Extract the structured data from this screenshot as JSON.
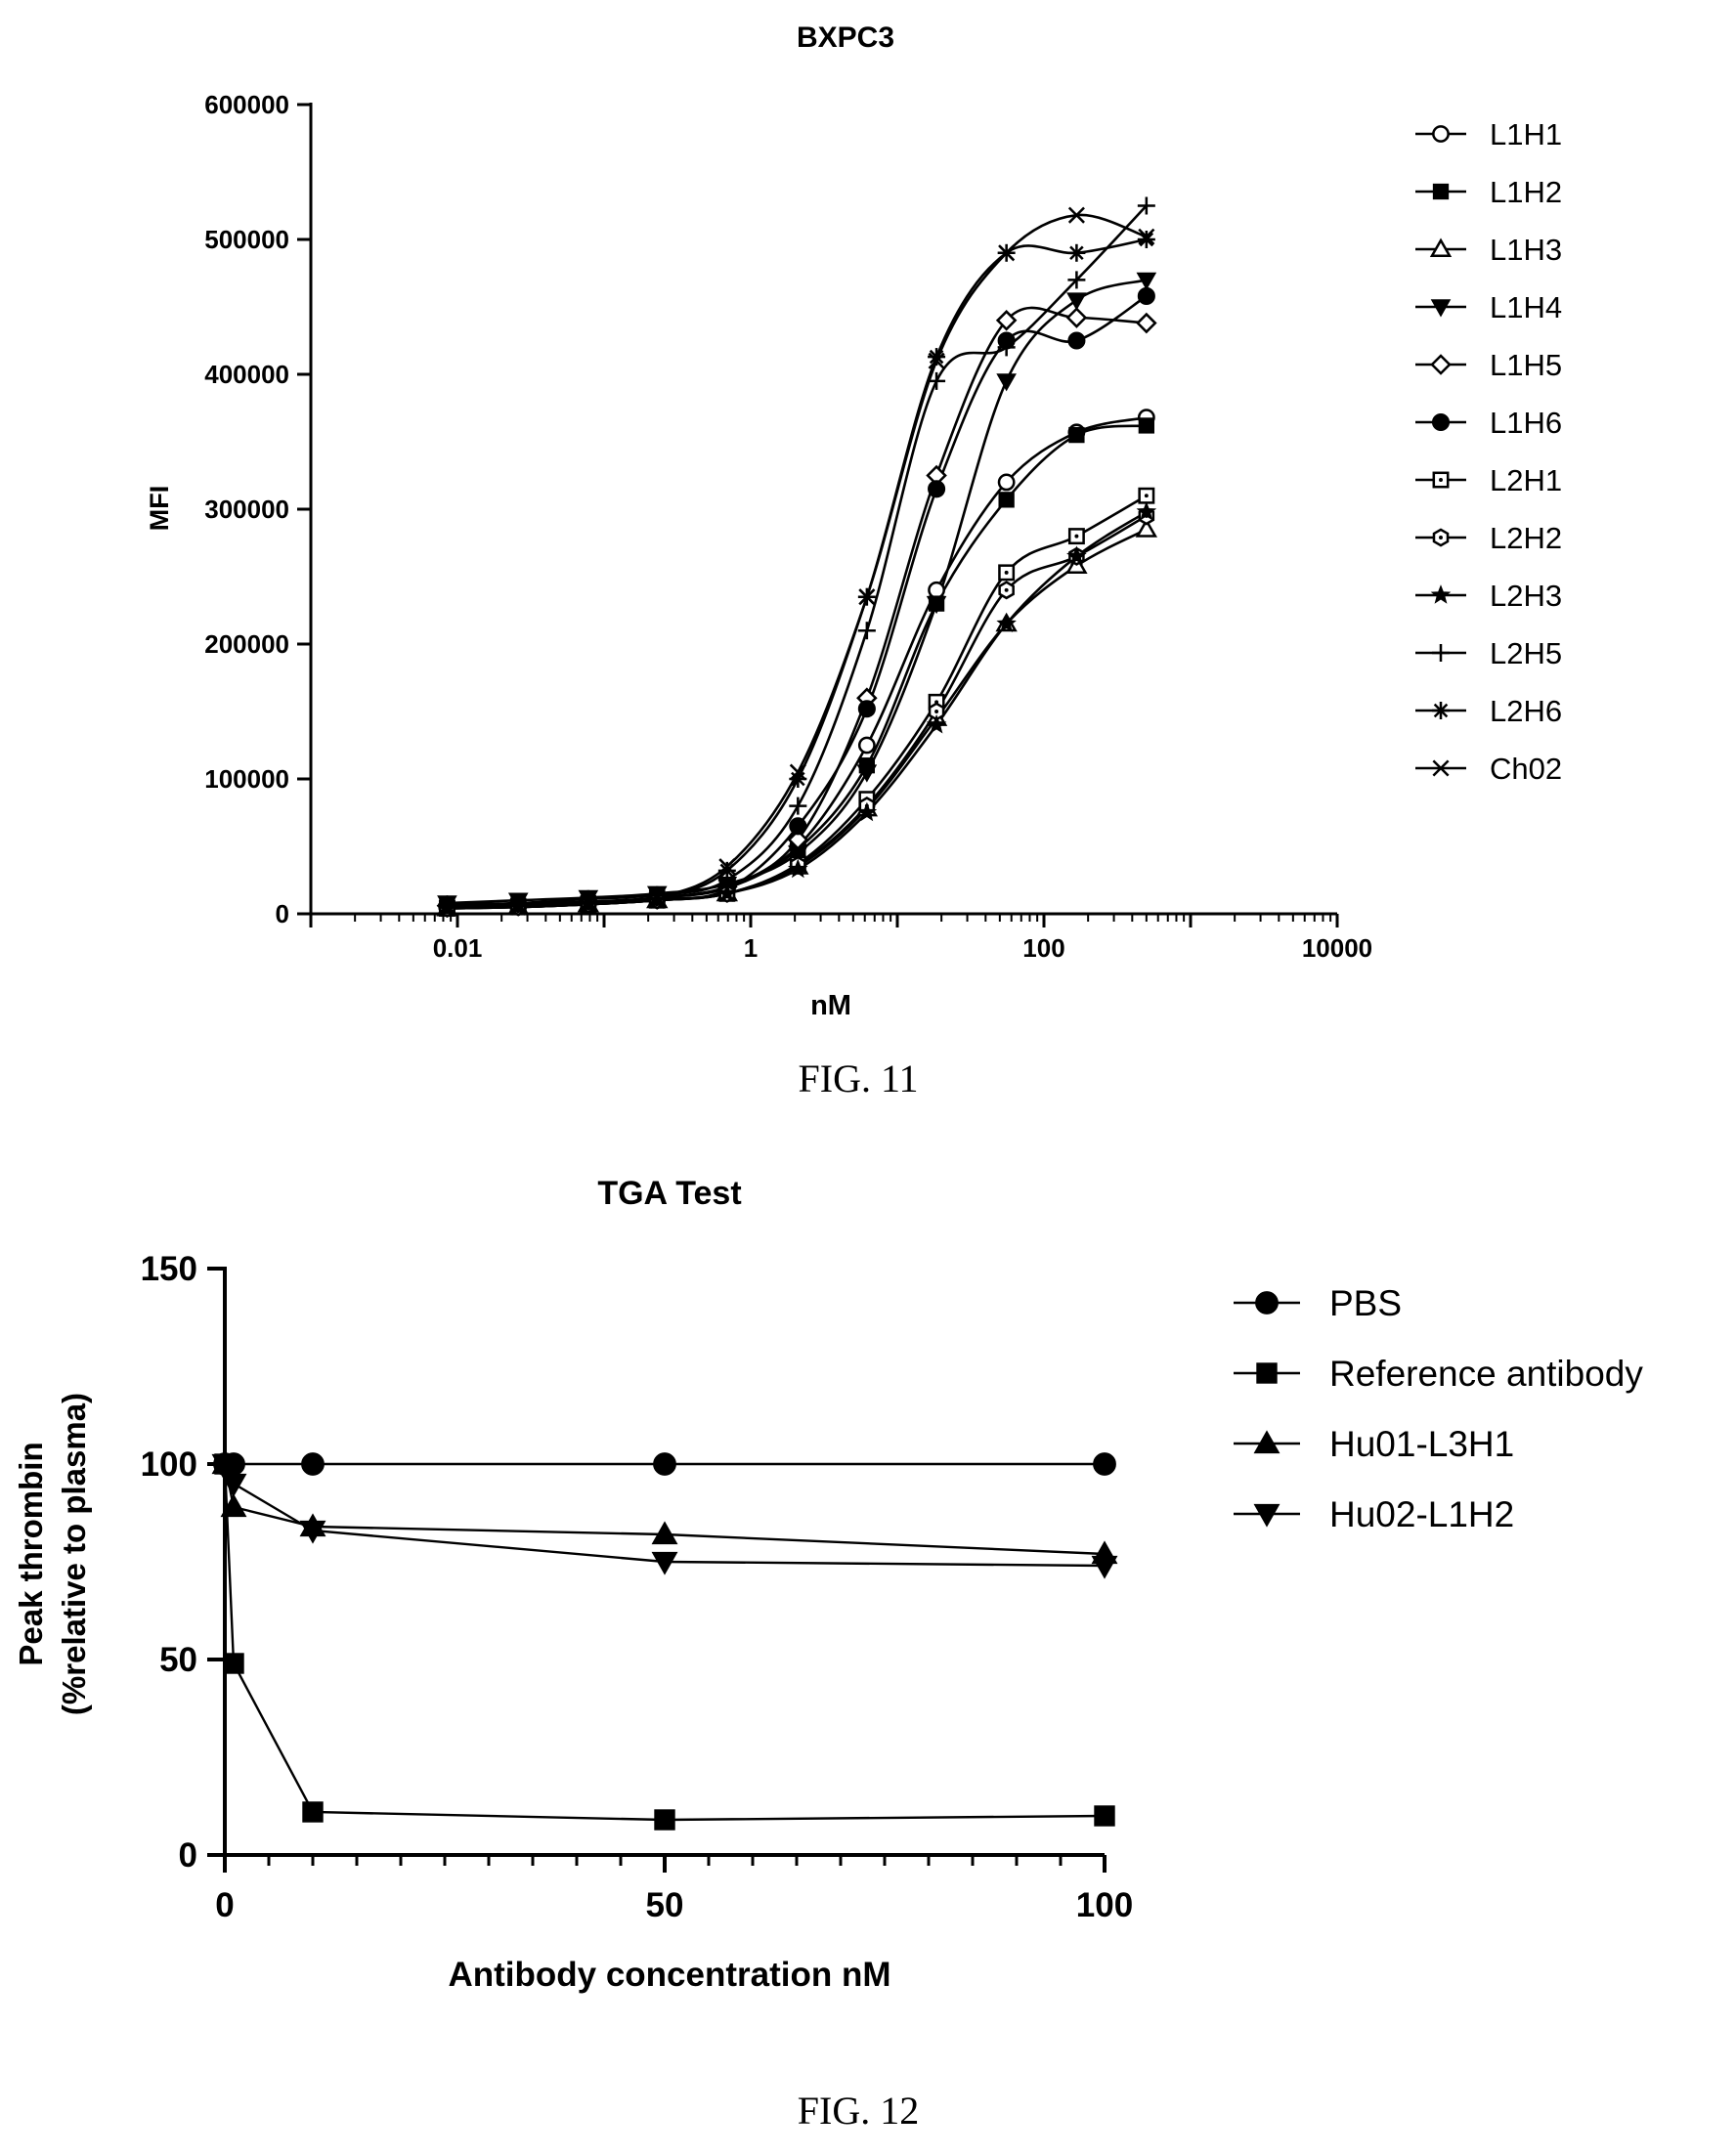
{
  "figures": [
    {
      "caption": "FIG. 11"
    },
    {
      "caption": "FIG. 12"
    }
  ],
  "chart_data": [
    {
      "type": "scatter",
      "subtype": "dose-response curves (log x axis) with fitted lines",
      "title": "BXPC3",
      "xlabel": "nM",
      "ylabel": "MFI",
      "xscale": "log",
      "xlim": [
        0.001,
        10000
      ],
      "ylim": [
        0,
        600000
      ],
      "xticks": [
        0.01,
        1,
        100,
        10000
      ],
      "xtick_labels": [
        "0.01",
        "1",
        "100",
        "10000"
      ],
      "yticks": [
        0,
        100000,
        200000,
        300000,
        400000,
        500000,
        600000
      ],
      "ytick_labels": [
        "0",
        "100000",
        "200000",
        "300000",
        "400000",
        "500000",
        "600000"
      ],
      "legend_position": "right",
      "x": [
        0.0085,
        0.026,
        0.078,
        0.23,
        0.69,
        2.1,
        6.2,
        18.5,
        55.5,
        167,
        500
      ],
      "series": [
        {
          "name": "L1H1",
          "marker": "circle-open",
          "values": [
            5000,
            6000,
            8000,
            12000,
            20000,
            50000,
            125000,
            240000,
            320000,
            357000,
            368000
          ]
        },
        {
          "name": "L1H2",
          "marker": "square-filled",
          "values": [
            5000,
            6000,
            8000,
            12000,
            19000,
            48000,
            110000,
            230000,
            307000,
            355000,
            362000
          ]
        },
        {
          "name": "L1H3",
          "marker": "triangle-open",
          "values": [
            4000,
            5000,
            7000,
            10000,
            15000,
            35000,
            78000,
            145000,
            215000,
            258000,
            285000
          ]
        },
        {
          "name": "L1H4",
          "marker": "triangle-down-filled",
          "values": [
            8000,
            10000,
            12000,
            15000,
            22000,
            45000,
            105000,
            230000,
            395000,
            455000,
            470000
          ]
        },
        {
          "name": "L1H5",
          "marker": "diamond-open",
          "values": [
            6000,
            7000,
            9000,
            12000,
            20000,
            55000,
            160000,
            325000,
            440000,
            442000,
            438000
          ]
        },
        {
          "name": "L1H6",
          "marker": "circle-filled",
          "values": [
            5000,
            6000,
            8000,
            11000,
            18000,
            65000,
            152000,
            315000,
            425000,
            425000,
            458000
          ]
        },
        {
          "name": "L2H1",
          "marker": "square-open-dot",
          "values": [
            4000,
            5000,
            7000,
            10000,
            15000,
            37000,
            85000,
            157000,
            253000,
            280000,
            310000
          ]
        },
        {
          "name": "L2H2",
          "marker": "hexagon-open-dot",
          "values": [
            4000,
            5000,
            7000,
            10000,
            15000,
            36000,
            80000,
            150000,
            240000,
            265000,
            295000
          ]
        },
        {
          "name": "L2H3",
          "marker": "star",
          "values": [
            4000,
            5000,
            7000,
            10000,
            15000,
            33000,
            75000,
            140000,
            215000,
            265000,
            298000
          ]
        },
        {
          "name": "L2H5",
          "marker": "plus",
          "values": [
            7000,
            8000,
            11000,
            14000,
            25000,
            80000,
            210000,
            395000,
            420000,
            470000,
            525000
          ]
        },
        {
          "name": "L2H6",
          "marker": "asterisk",
          "values": [
            6000,
            7000,
            9000,
            12000,
            32000,
            100000,
            235000,
            413000,
            490000,
            490000,
            500000
          ]
        },
        {
          "name": "Ch02",
          "marker": "x",
          "values": [
            5000,
            6000,
            8000,
            12000,
            35000,
            105000,
            235000,
            410000,
            490000,
            518000,
            502000
          ]
        }
      ]
    },
    {
      "type": "line",
      "subtype": "line with markers",
      "title": "TGA Test",
      "xlabel": "Antibody concentration nM",
      "ylabel_lines": [
        "Peak thrombin",
        "(%relative to plasma)"
      ],
      "xlim": [
        0,
        100
      ],
      "ylim": [
        0,
        150
      ],
      "xticks": [
        0,
        50,
        100
      ],
      "xtick_labels": [
        "0",
        "50",
        "100"
      ],
      "yticks": [
        0,
        50,
        100,
        150
      ],
      "ytick_labels": [
        "0",
        "50",
        "100",
        "150"
      ],
      "legend_position": "right",
      "series": [
        {
          "name": "PBS",
          "marker": "circle-filled",
          "x": [
            0,
            1,
            10,
            50,
            100
          ],
          "values": [
            100,
            100,
            100,
            100,
            100
          ]
        },
        {
          "name": "Reference antibody",
          "marker": "square-filled",
          "x": [
            0,
            1,
            10,
            50,
            100
          ],
          "values": [
            100,
            49,
            11,
            9,
            10
          ]
        },
        {
          "name": "Hu01-L3H1",
          "marker": "triangle-filled",
          "x": [
            0,
            1,
            10,
            50,
            100
          ],
          "values": [
            100,
            89,
            84,
            82,
            77
          ]
        },
        {
          "name": "Hu02-L1H2",
          "marker": "triangle-down-filled",
          "x": [
            0,
            1,
            10,
            50,
            100
          ],
          "values": [
            100,
            95,
            83,
            75,
            74
          ]
        }
      ]
    }
  ]
}
